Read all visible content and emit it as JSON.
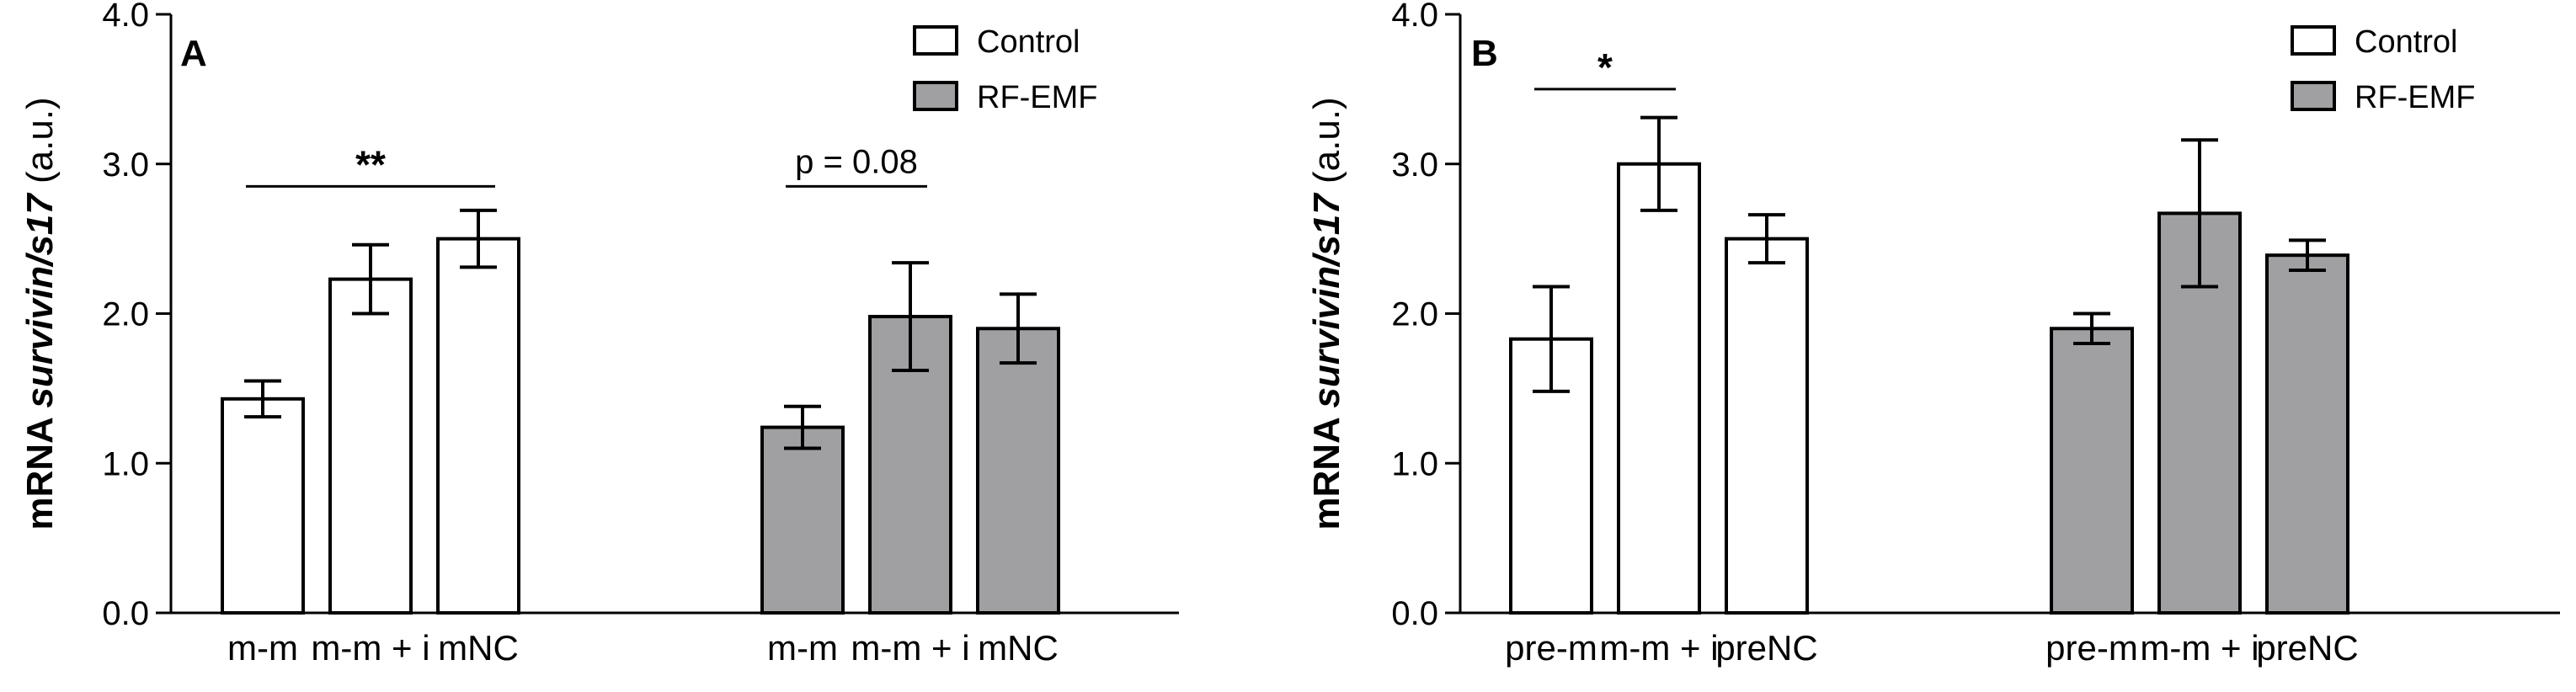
{
  "colors": {
    "control": "#ffffff",
    "rf_emf": "#a0a0a3",
    "stroke": "#000000"
  },
  "chart_data": [
    {
      "type": "bar",
      "panel": "A",
      "ylabel_parts": [
        "mRNA ",
        "survivin/s17",
        " (a.u.)"
      ],
      "ylim": [
        0,
        4.0
      ],
      "yticks": [
        0,
        1.0,
        2.0,
        3.0,
        4.0
      ],
      "ytick_labels": [
        "0.0",
        "1.0",
        "2.0",
        "3.0",
        "4.0"
      ],
      "legend": [
        {
          "name": "Control",
          "color": "#ffffff"
        },
        {
          "name": "RF-EMF",
          "color": "#a0a0a3"
        }
      ],
      "legend_position": "top-right",
      "groups": [
        {
          "name": "Control",
          "color": "#ffffff",
          "categories": [
            "m-m",
            "m-m + i",
            "mNC"
          ],
          "values": [
            1.43,
            2.23,
            2.5
          ],
          "errors": [
            0.12,
            0.23,
            0.19
          ]
        },
        {
          "name": "RF-EMF",
          "color": "#a0a0a3",
          "categories": [
            "m-m",
            "m-m + i",
            "mNC"
          ],
          "values": [
            1.24,
            1.98,
            1.9
          ],
          "errors": [
            0.14,
            0.36,
            0.23
          ]
        }
      ],
      "annotations": [
        {
          "text": "**",
          "group": 0,
          "from": 0,
          "to": 2,
          "y": 2.85,
          "style": "star"
        },
        {
          "text": "p = 0.08",
          "group": 1,
          "from": 0,
          "to": 1,
          "y": 2.85,
          "style": "text"
        }
      ]
    },
    {
      "type": "bar",
      "panel": "B",
      "ylabel_parts": [
        "mRNA ",
        "survivin/s17",
        " (a.u.)"
      ],
      "ylim": [
        0,
        4.0
      ],
      "yticks": [
        0,
        1.0,
        2.0,
        3.0,
        4.0
      ],
      "ytick_labels": [
        "0.0",
        "1.0",
        "2.0",
        "3.0",
        "4.0"
      ],
      "legend": [
        {
          "name": "Control",
          "color": "#ffffff"
        },
        {
          "name": "RF-EMF",
          "color": "#a0a0a3"
        }
      ],
      "legend_position": "top-right",
      "groups": [
        {
          "name": "Control",
          "color": "#ffffff",
          "categories": [
            "pre-m",
            "m-m + i",
            "preNC"
          ],
          "values": [
            1.83,
            3.0,
            2.5
          ],
          "errors": [
            0.35,
            0.31,
            0.16
          ]
        },
        {
          "name": "RF-EMF",
          "color": "#a0a0a3",
          "categories": [
            "pre-m",
            "m-m + i",
            "preNC"
          ],
          "values": [
            1.9,
            2.67,
            2.39
          ],
          "errors": [
            0.1,
            0.49,
            0.1
          ]
        }
      ],
      "annotations": [
        {
          "text": "*",
          "group": 0,
          "from": 0,
          "to": 1,
          "y": 3.5,
          "style": "star"
        }
      ]
    }
  ]
}
